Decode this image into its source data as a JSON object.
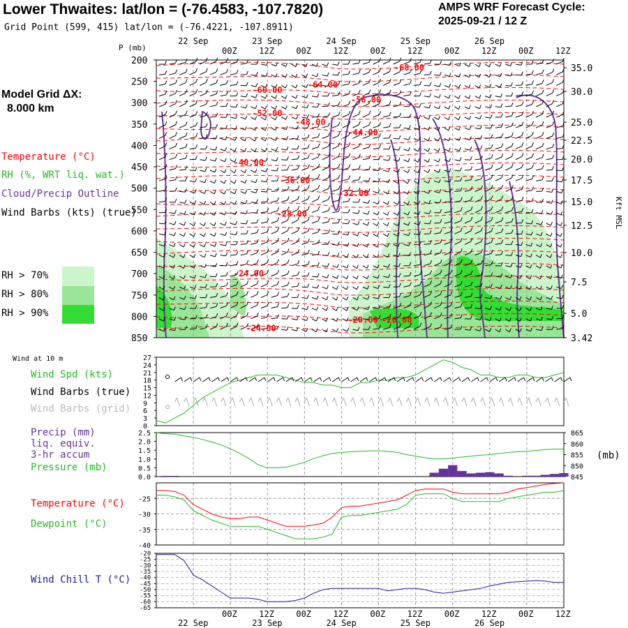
{
  "header": {
    "title": "Lower Thwaites:  lat/lon = (-76.4583, -107.7820)",
    "grid_point": "Grid Point (599, 415) lat/lon = (-76.4221, -107.8911)",
    "cycle_label": "AMPS WRF Forecast Cycle:",
    "cycle_value": "2025-09-21 / 12  Z"
  },
  "sidebar": {
    "model_grid_label": "Model Grid ΔX:",
    "model_grid_value": "8.000 km",
    "legend_temperature": "Temperature (°C)",
    "legend_rh": "RH (%, WRT liq. wat.)",
    "legend_cloud": "Cloud/Precip Outline",
    "legend_wind": "Wind Barbs (kts) (true)",
    "rh_70": "RH > 70%",
    "rh_80": "RH > 80%",
    "rh_90": "RH > 90%",
    "colors": {
      "rh70": "#ccf5cc",
      "rh80": "#99e699",
      "rh90": "#33dd33",
      "temp": "#ff0000",
      "cloud": "#663399"
    }
  },
  "time_axis": {
    "ticks": [
      "00Z",
      "12Z",
      "00Z",
      "12Z",
      "00Z",
      "12Z",
      "00Z",
      "12Z",
      "00Z",
      "12Z"
    ],
    "dates": [
      "22 Sep",
      "23 Sep",
      "24 Sep",
      "25 Sep",
      "26 Sep"
    ],
    "range_hours": [
      -12,
      120
    ]
  },
  "panels": {
    "upper": {
      "p_label": "P (mb)",
      "kft_label": "Kft MSL",
      "pressure_ticks": [
        "200",
        "250",
        "300",
        "350",
        "400",
        "450",
        "500",
        "550",
        "600",
        "650",
        "700",
        "750",
        "800",
        "850"
      ],
      "kft_ticks": [
        "35.0",
        "30.0",
        "25.0",
        "22.5",
        "20.0",
        "17.5",
        "15.0",
        "12.5",
        "10.0",
        "7.5",
        "5.0",
        "3.42"
      ]
    },
    "wind": {
      "note": "Wind at 10 m",
      "label_speed": "Wind Spd (kts)",
      "label_barbs_true": "Wind Barbs (true)",
      "label_barbs_grid": "Wind Barbs (grid)",
      "y_ticks": [
        "27",
        "24",
        "21",
        "18",
        "15",
        "12",
        "9",
        "6",
        "3",
        "0"
      ]
    },
    "precip": {
      "label_precip": "Precip (mm)",
      "label_liq": "liq. equiv.",
      "label_accum": "3-hr accum",
      "label_pressure": "Pressure (mb)",
      "units_right": "(mb)",
      "y_ticks_left": [
        "2.5",
        "2.0",
        "1.5",
        "1.0",
        "0.5",
        "0.0"
      ],
      "y_ticks_right": [
        "865",
        "860",
        "855",
        "850",
        "845"
      ]
    },
    "temp": {
      "label_temp": "Temperature (°C)",
      "label_dew": "Dewpoint (°C)",
      "y_ticks": [
        "-25",
        "-30",
        "-35",
        "-40"
      ]
    },
    "chill": {
      "label": "Wind Chill T (°C)",
      "y_ticks": [
        "-20",
        "-25",
        "-30",
        "-35",
        "-40",
        "-45",
        "-50",
        "-55",
        "-60",
        "-65"
      ]
    }
  },
  "chart_data": [
    {
      "type": "contour",
      "title": "Vertical cross-section: Temperature, RH, cloud outline, wind barbs",
      "ylabel": "P (mb)",
      "ylim": [
        200,
        850
      ],
      "temperature_contour_labels": [
        {
          "hour": 70,
          "p": 218,
          "label": "-68.00"
        },
        {
          "hour": 42,
          "p": 258,
          "label": "-64.00"
        },
        {
          "hour": 24,
          "p": 270,
          "label": "-60.00"
        },
        {
          "hour": 56,
          "p": 293,
          "label": "-56.00"
        },
        {
          "hour": 24,
          "p": 325,
          "label": "-52.00"
        },
        {
          "hour": 38,
          "p": 345,
          "label": "-48.00"
        },
        {
          "hour": 55,
          "p": 370,
          "label": "-44.00"
        },
        {
          "hour": 18,
          "p": 440,
          "label": "-40.00"
        },
        {
          "hour": 33,
          "p": 482,
          "label": "-36.00"
        },
        {
          "hour": 52,
          "p": 512,
          "label": "-32.00"
        },
        {
          "hour": 32,
          "p": 560,
          "label": "-28.00"
        },
        {
          "hour": 18,
          "p": 700,
          "label": "-24.00"
        },
        {
          "hour": 22,
          "p": 828,
          "label": "-24.00"
        },
        {
          "hour": 55,
          "p": 808,
          "label": "-20.00"
        },
        {
          "hour": 66,
          "p": 808,
          "label": "-20.00"
        }
      ]
    },
    {
      "type": "line",
      "title": "Wind at 10 m",
      "ylim": [
        0,
        27
      ],
      "x": [
        -12,
        -9,
        -6,
        -3,
        0,
        3,
        6,
        9,
        12,
        15,
        18,
        21,
        24,
        27,
        30,
        33,
        36,
        39,
        42,
        45,
        48,
        51,
        54,
        57,
        60,
        63,
        66,
        69,
        72,
        75,
        78,
        81,
        84,
        87,
        90,
        93,
        96,
        99,
        102,
        105,
        108,
        111,
        114,
        117,
        120
      ],
      "series": [
        {
          "name": "Wind Spd (kts)",
          "values": [
            2,
            1,
            3,
            5,
            8,
            11,
            13,
            15,
            17,
            18,
            19,
            20,
            20,
            20,
            19,
            18,
            17,
            17,
            16,
            16,
            15,
            15,
            17,
            17,
            18,
            18,
            19,
            19,
            20,
            22,
            24,
            26,
            25,
            23,
            22,
            20,
            20,
            19,
            19,
            20,
            20,
            19,
            19,
            20,
            21
          ]
        }
      ]
    },
    {
      "type": "bar",
      "title": "Precip (mm) liq. equiv. 3-hr accum / Pressure (mb)",
      "ylim": [
        0,
        2.5
      ],
      "x": [
        -12,
        -9,
        -6,
        -3,
        0,
        3,
        6,
        9,
        12,
        15,
        18,
        21,
        24,
        27,
        30,
        33,
        36,
        39,
        42,
        45,
        48,
        51,
        54,
        57,
        60,
        63,
        66,
        69,
        72,
        75,
        78,
        81,
        84,
        87,
        90,
        93,
        96,
        99,
        102,
        105,
        108,
        111,
        114,
        117,
        120
      ],
      "series": [
        {
          "name": "Precip",
          "values": [
            0,
            0.04,
            0.04,
            0,
            0,
            0,
            0,
            0,
            0,
            0,
            0,
            0,
            0,
            0,
            0,
            0,
            0,
            0,
            0,
            0,
            0,
            0,
            0,
            0,
            0,
            0,
            0,
            0,
            0,
            0,
            0.22,
            0.45,
            0.65,
            0.32,
            0.18,
            0.22,
            0.25,
            0.18,
            0.05,
            0,
            0.05,
            0.05,
            0.1,
            0.15,
            0.2
          ]
        },
        {
          "name": "Pressure (mb)",
          "ylim": [
            845,
            865
          ],
          "values": [
            865,
            864.5,
            864.3,
            863.5,
            862.8,
            861.9,
            860.7,
            859.4,
            857.6,
            855.6,
            853.2,
            850.4,
            849,
            849,
            849.3,
            850.3,
            851.5,
            853.2,
            854.5,
            855.5,
            856,
            856.3,
            856.5,
            856.7,
            856.7,
            856.5,
            856,
            855,
            854.3,
            853.6,
            853,
            853,
            853.4,
            853.9,
            854.3,
            854.7,
            855,
            855.5,
            856,
            856.3,
            856.5,
            856.9,
            857.3,
            857.5,
            857.5
          ]
        }
      ]
    },
    {
      "type": "line",
      "title": "Temperature / Dewpoint",
      "ylim": [
        -40,
        -20
      ],
      "x": [
        -12,
        -9,
        -6,
        -3,
        0,
        3,
        6,
        9,
        12,
        15,
        18,
        21,
        24,
        27,
        30,
        33,
        36,
        39,
        42,
        45,
        48,
        51,
        54,
        57,
        60,
        63,
        66,
        69,
        72,
        75,
        78,
        81,
        84,
        87,
        90,
        93,
        96,
        99,
        102,
        105,
        108,
        111,
        114,
        117,
        120
      ],
      "series": [
        {
          "name": "Temperature (°C)",
          "values": [
            -22.5,
            -22.5,
            -22.8,
            -24,
            -27,
            -28.5,
            -30,
            -31,
            -31.5,
            -31.5,
            -31,
            -31,
            -32,
            -33,
            -34,
            -34,
            -34,
            -33.5,
            -33,
            -31,
            -28,
            -27.5,
            -27.5,
            -27,
            -26.5,
            -26,
            -25.5,
            -24,
            -22.5,
            -22,
            -22,
            -22,
            -23,
            -23.5,
            -23.5,
            -23.5,
            -23.5,
            -23.5,
            -23,
            -22,
            -21.5,
            -21,
            -20.5,
            -20.2,
            -20
          ]
        },
        {
          "name": "Dewpoint (°C)",
          "values": [
            -24,
            -24,
            -24.5,
            -25.5,
            -29,
            -30.5,
            -32,
            -33,
            -34,
            -34,
            -34,
            -34,
            -35,
            -36,
            -37,
            -38,
            -38,
            -38,
            -37.5,
            -36.5,
            -31,
            -30.5,
            -30.5,
            -30,
            -29.5,
            -29,
            -28.5,
            -27,
            -24,
            -23.5,
            -23.5,
            -23.5,
            -25,
            -26,
            -26,
            -26,
            -26,
            -26,
            -25,
            -24.5,
            -24,
            -23.5,
            -23,
            -23,
            -22.5
          ]
        }
      ]
    },
    {
      "type": "line",
      "title": "Wind Chill T (°C)",
      "ylim": [
        -65,
        -20
      ],
      "x": [
        -12,
        -9,
        -6,
        -3,
        0,
        3,
        6,
        9,
        12,
        15,
        18,
        21,
        24,
        27,
        30,
        33,
        36,
        39,
        42,
        45,
        48,
        51,
        54,
        57,
        60,
        63,
        66,
        69,
        72,
        75,
        78,
        81,
        84,
        87,
        90,
        93,
        96,
        99,
        102,
        105,
        108,
        111,
        114,
        117,
        120
      ],
      "series": [
        {
          "name": "Wind Chill T (°C)",
          "values": [
            -21,
            -21,
            -21,
            -26,
            -38,
            -42,
            -47,
            -52,
            -57,
            -57,
            -57,
            -58,
            -60,
            -60,
            -60,
            -59,
            -57,
            -53,
            -50,
            -49,
            -49,
            -49,
            -49,
            -49,
            -49,
            -51,
            -50,
            -49,
            -49,
            -50,
            -52,
            -53,
            -52,
            -51,
            -50,
            -49,
            -47,
            -45.5,
            -44,
            -43.5,
            -43,
            -42.5,
            -43,
            -44,
            -44
          ]
        }
      ]
    }
  ]
}
